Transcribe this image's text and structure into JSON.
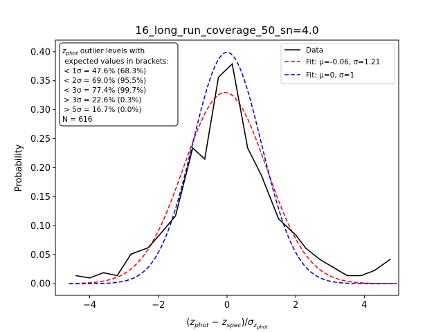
{
  "chart_data": {
    "type": "line",
    "title": "16_long_run_coverage_50_sn=4.0",
    "xlabel": "(z_phot − z_spec)/σ_z_phot",
    "ylabel": "Probability",
    "xlim": [
      -5,
      5
    ],
    "ylim": [
      -0.02,
      0.42
    ],
    "xticks": [
      -4,
      -2,
      0,
      2,
      4
    ],
    "xtick_labels": [
      "−4",
      "−2",
      "0",
      "2",
      "4"
    ],
    "yticks": [
      0.0,
      0.05,
      0.1,
      0.15,
      0.2,
      0.25,
      0.3,
      0.35,
      0.4
    ],
    "ytick_labels": [
      "0.00",
      "0.05",
      "0.10",
      "0.15",
      "0.20",
      "0.25",
      "0.30",
      "0.35",
      "0.40"
    ],
    "grid": false,
    "legend_position": "top-right",
    "series": [
      {
        "name": "Data",
        "color": "#000000",
        "style": "solid",
        "x": [
          -4.4,
          -4.0,
          -3.6,
          -3.2,
          -2.8,
          -2.3,
          -2.0,
          -1.5,
          -1.0,
          -0.65,
          -0.25,
          0.15,
          0.6,
          1.0,
          1.5,
          2.0,
          2.3,
          2.7,
          3.1,
          3.5,
          3.9,
          4.3,
          4.75
        ],
        "y": [
          0.014,
          0.01,
          0.019,
          0.014,
          0.051,
          0.062,
          0.082,
          0.117,
          0.234,
          0.215,
          0.356,
          0.379,
          0.234,
          0.187,
          0.112,
          0.084,
          0.061,
          0.042,
          0.028,
          0.014,
          0.014,
          0.023,
          0.042
        ]
      },
      {
        "name": "Fit: μ=-0.06, σ=1.21",
        "color": "#ff0000",
        "style": "dashed",
        "mu": -0.06,
        "sigma": 1.21
      },
      {
        "name": "Fit: μ=0, σ=1",
        "color": "#0000ff",
        "style": "dashed",
        "mu": 0,
        "sigma": 1
      }
    ],
    "fit_x_range": [
      -4.6,
      4.95
    ],
    "annotation": {
      "lines": [
        "z_phot outlier levels with",
        " expected values in brackets:",
        "< 1σ = 47.6% (68.3%)",
        "< 2σ = 69.0% (95.5%)",
        "< 3σ = 77.4% (99.7%)",
        "> 3σ = 22.6% (0.3%)",
        "> 5σ = 16.7% (0.0%)",
        "N = 616"
      ]
    }
  }
}
